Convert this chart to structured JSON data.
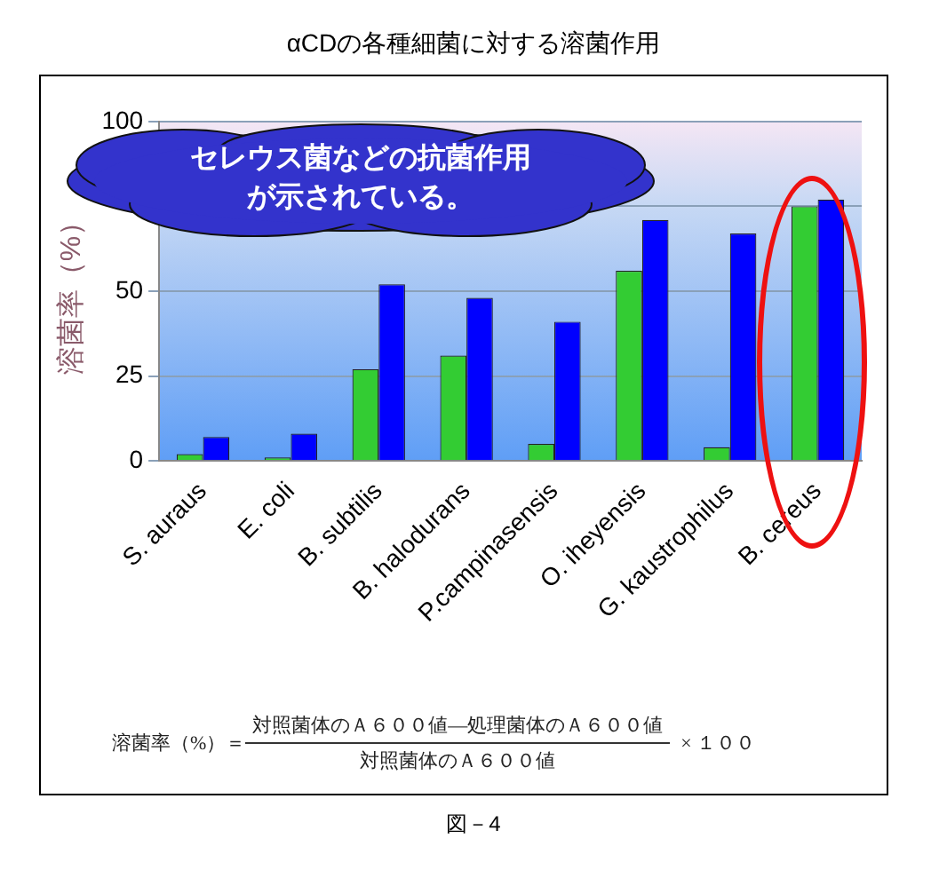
{
  "chart_data": {
    "type": "bar",
    "title": "αCDの各種細菌に対する溶菌作用",
    "ylabel": "溶菌率（%）",
    "categories": [
      "S. auraus",
      "E. coli",
      "B. subtilis",
      "B. halodurans",
      "P.campinasensis",
      "O. iheyensis",
      "G. kaustrophilus",
      "B. cereus"
    ],
    "series": [
      {
        "color": "#33cc33",
        "values": [
          2,
          1,
          27,
          31,
          5,
          56,
          4,
          75
        ]
      },
      {
        "color": "#0000ff",
        "values": [
          7,
          8,
          52,
          48,
          41,
          71,
          67,
          77
        ]
      }
    ],
    "ylim": [
      0,
      100
    ],
    "yticks": [
      0,
      25,
      50,
      {
        "value": 75,
        "label": null
      },
      100
    ],
    "grid": "y",
    "legend": false,
    "annotations": [
      "セレウス菌などの抗菌作用が示されている。",
      "溶菌率（%）＝",
      "対照菌体のＡ６００値―処理菌体のＡ６００値",
      "対照菌体のＡ６００値",
      "× １００",
      "図－4"
    ]
  }
}
